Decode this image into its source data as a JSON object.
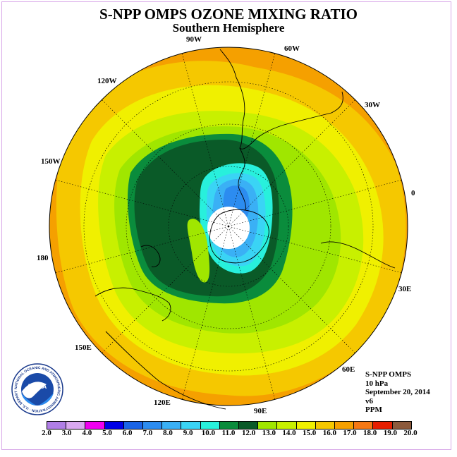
{
  "title": "S-NPP OMPS OZONE MIXING RATIO",
  "subtitle": "Southern Hemisphere",
  "longitude_labels": [
    "90W",
    "60W",
    "30W",
    "0",
    "30E",
    "60E",
    "90E",
    "120E",
    "150E",
    "180",
    "150W",
    "120W"
  ],
  "info": {
    "instrument": "S-NPP OMPS",
    "pressure": "10 hPa",
    "date": "September 20, 2014",
    "version": "v6",
    "units": "PPM"
  },
  "logo": {
    "text": "NOAA",
    "ring_text": "NATIONAL OCEANIC AND ATMOSPHERIC ADMINISTRATION · U.S. DEPARTMENT OF COMMERCE"
  },
  "colorbar": {
    "levels": [
      "2.0",
      "3.0",
      "4.0",
      "5.0",
      "6.0",
      "7.0",
      "8.0",
      "9.0",
      "10.0",
      "11.0",
      "12.0",
      "13.0",
      "14.0",
      "15.0",
      "16.0",
      "17.0",
      "18.0",
      "19.0",
      "20.0"
    ],
    "colors": [
      "#b07ee6",
      "#d9a8f0",
      "#f000f0",
      "#0000e6",
      "#1a64e6",
      "#2c8cf0",
      "#3ab0f5",
      "#3ad4f5",
      "#28f0dc",
      "#0a8c3c",
      "#0a5a28",
      "#a0e600",
      "#c8f000",
      "#f0f000",
      "#f5c800",
      "#f5a000",
      "#f57814",
      "#e61e00",
      "#8c5a3c"
    ]
  },
  "map_colors": {
    "orange": "#f5a000",
    "light_orange": "#f5c800",
    "yellow": "#f0f000",
    "yellow_green": "#c8f000",
    "light_green": "#a0e600",
    "dark_green": "#0a5a28",
    "green": "#0a8c3c",
    "cyan": "#28f0dc",
    "light_blue": "#3ad4f5",
    "sky_blue": "#3ab0f5",
    "blue": "#2c8cf0",
    "pole_mask": "#ffffff"
  }
}
